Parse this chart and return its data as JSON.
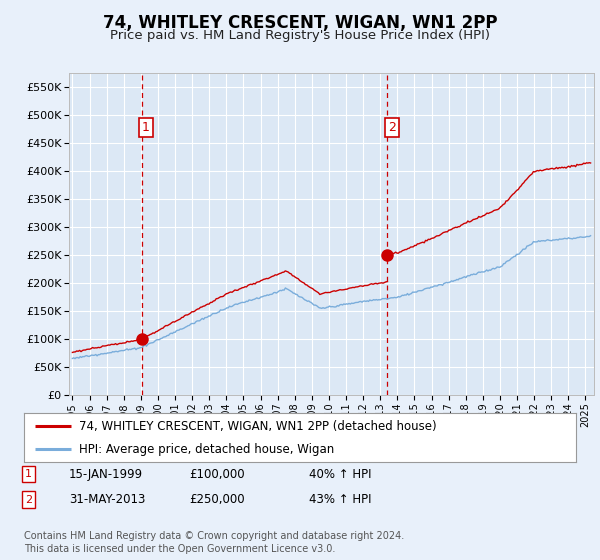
{
  "title": "74, WHITLEY CRESCENT, WIGAN, WN1 2PP",
  "subtitle": "Price paid vs. HM Land Registry's House Price Index (HPI)",
  "background_color": "#e8f0fa",
  "plot_bg_color": "#dce8f5",
  "grid_color": "#ffffff",
  "ylabel_vals": [
    0,
    50000,
    100000,
    150000,
    200000,
    250000,
    300000,
    350000,
    400000,
    450000,
    500000,
    550000
  ],
  "ylabel_labels": [
    "£0",
    "£50K",
    "£100K",
    "£150K",
    "£200K",
    "£250K",
    "£300K",
    "£350K",
    "£400K",
    "£450K",
    "£500K",
    "£550K"
  ],
  "xlim": [
    1994.8,
    2025.5
  ],
  "ylim": [
    0,
    575000
  ],
  "xtick_years": [
    1995,
    1996,
    1997,
    1998,
    1999,
    2000,
    2001,
    2002,
    2003,
    2004,
    2005,
    2006,
    2007,
    2008,
    2009,
    2010,
    2011,
    2012,
    2013,
    2014,
    2015,
    2016,
    2017,
    2018,
    2019,
    2020,
    2021,
    2022,
    2023,
    2024,
    2025
  ],
  "hpi_line_color": "#7aaddb",
  "price_line_color": "#cc0000",
  "vline_color": "#cc0000",
  "marker1_x": 1999.04,
  "marker1_y": 100000,
  "marker2_x": 2013.42,
  "marker2_y": 250000,
  "legend_line1": "74, WHITLEY CRESCENT, WIGAN, WN1 2PP (detached house)",
  "legend_line2": "HPI: Average price, detached house, Wigan",
  "table_rows": [
    {
      "num": "1",
      "date": "15-JAN-1999",
      "price": "£100,000",
      "hpi": "40% ↑ HPI"
    },
    {
      "num": "2",
      "date": "31-MAY-2013",
      "price": "£250,000",
      "hpi": "43% ↑ HPI"
    }
  ],
  "footnote": "Contains HM Land Registry data © Crown copyright and database right 2024.\nThis data is licensed under the Open Government Licence v3.0."
}
